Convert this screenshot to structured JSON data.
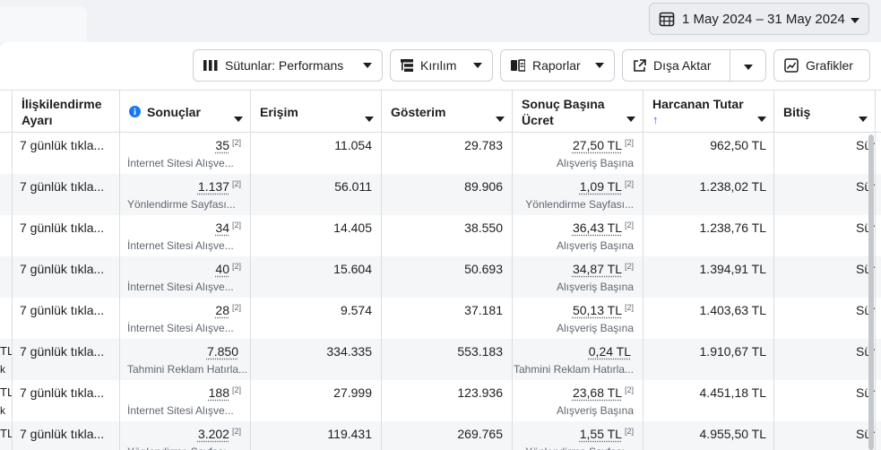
{
  "date_range": {
    "label": "1 May 2024 – 31 May 2024"
  },
  "toolbar": {
    "columns_label": "Sütunlar: Performans",
    "breakdown_label": "Kırılım",
    "reports_label": "Raporlar",
    "export_label": "Dışa Aktar",
    "charts_label": "Grafikler"
  },
  "headers": {
    "attribution": "İlişkilendirme Ayarı",
    "results": "Sonuçlar",
    "reach": "Erişim",
    "impressions": "Gösterim",
    "cost_per_result": "Sonuç Başına Ücret",
    "amount_spent": "Harcanan Tutar",
    "amount_spent_sort": "↑",
    "ends": "Bitiş"
  },
  "rows": [
    {
      "lead": "",
      "lead2": "",
      "attribution": "7 günlük tıkla...",
      "results": "35",
      "results_fn": "[2]",
      "results_sub": "İnternet Sitesi Alışve...",
      "reach": "11.054",
      "impressions": "29.783",
      "cpr": "27,50 TL",
      "cpr_fn": "[2]",
      "cpr_sub": "Alışveriş Başına",
      "spent": "962,50 TL",
      "ends": "Sürekli"
    },
    {
      "lead": "",
      "lead2": "",
      "attribution": "7 günlük tıkla...",
      "results": "1.137",
      "results_fn": "[2]",
      "results_sub": "Yönlendirme Sayfası...",
      "reach": "56.011",
      "impressions": "89.906",
      "cpr": "1,09 TL",
      "cpr_fn": "[2]",
      "cpr_sub": "Yönlendirme Sayfası...",
      "spent": "1.238,02 TL",
      "ends": "Sürekli"
    },
    {
      "lead": "",
      "lead2": "",
      "attribution": "7 günlük tıkla...",
      "results": "34",
      "results_fn": "[2]",
      "results_sub": "İnternet Sitesi Alışve...",
      "reach": "14.405",
      "impressions": "38.550",
      "cpr": "36,43 TL",
      "cpr_fn": "[2]",
      "cpr_sub": "Alışveriş Başına",
      "spent": "1.238,76 TL",
      "ends": "Sürekli"
    },
    {
      "lead": "",
      "lead2": "",
      "attribution": "7 günlük tıkla...",
      "results": "40",
      "results_fn": "[2]",
      "results_sub": "İnternet Sitesi Alışve...",
      "reach": "15.604",
      "impressions": "50.693",
      "cpr": "34,87 TL",
      "cpr_fn": "[2]",
      "cpr_sub": "Alışveriş Başına",
      "spent": "1.394,91 TL",
      "ends": "Sürekli"
    },
    {
      "lead": "",
      "lead2": "",
      "attribution": "7 günlük tıkla...",
      "results": "28",
      "results_fn": "[2]",
      "results_sub": "İnternet Sitesi Alışve...",
      "reach": "9.574",
      "impressions": "37.181",
      "cpr": "50,13 TL",
      "cpr_fn": "[2]",
      "cpr_sub": "Alışveriş Başına",
      "spent": "1.403,63 TL",
      "ends": "Sürekli"
    },
    {
      "lead": "TL",
      "lead2": "k",
      "attribution": "7 günlük tıkla...",
      "results": "7.850",
      "results_fn": "",
      "results_sub": "Tahmini Reklam Hatırla...",
      "reach": "334.335",
      "impressions": "553.183",
      "cpr": "0,24 TL",
      "cpr_fn": "",
      "cpr_sub": "Tahmini Reklam Hatırla...",
      "spent": "1.910,67 TL",
      "ends": "Sürekli"
    },
    {
      "lead": "TL",
      "lead2": "k",
      "attribution": "7 günlük tıkla...",
      "results": "188",
      "results_fn": "[2]",
      "results_sub": "İnternet Sitesi Alışve...",
      "reach": "27.999",
      "impressions": "123.936",
      "cpr": "23,68 TL",
      "cpr_fn": "[2]",
      "cpr_sub": "Alışveriş Başına",
      "spent": "4.451,18 TL",
      "ends": "Sürekli"
    },
    {
      "lead": "TL",
      "lead2": "",
      "attribution": "7 günlük tıkla...",
      "results": "3.202",
      "results_fn": "[2]",
      "results_sub": "Yönlendirme Sayfası...",
      "reach": "119.431",
      "impressions": "269.765",
      "cpr": "1,55 TL",
      "cpr_fn": "[2]",
      "cpr_sub": "Yönlendirme Sayfası...",
      "spent": "4.955,50 TL",
      "ends": "Sürekli"
    }
  ]
}
